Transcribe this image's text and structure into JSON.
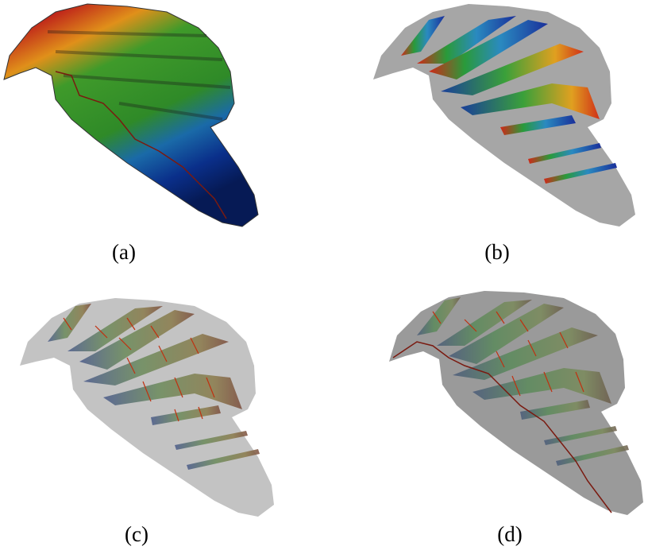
{
  "figure": {
    "panels": [
      {
        "id": "a",
        "caption": "(a)"
      },
      {
        "id": "b",
        "caption": "(b)"
      },
      {
        "id": "c",
        "caption": "(c)"
      },
      {
        "id": "d",
        "caption": "(d)"
      }
    ],
    "colors": {
      "surface_grey": "#9c9c9c",
      "high": "#c0281a",
      "mid_orange": "#e08a1a",
      "mid_green": "#3f9a2a",
      "low_blue": "#0a2f8a",
      "streamline": "#7a1a10"
    }
  }
}
